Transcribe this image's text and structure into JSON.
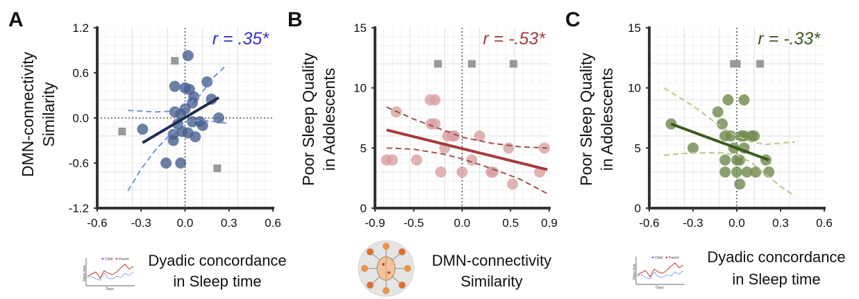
{
  "panels": [
    {
      "id": "A",
      "label": "A",
      "xlabel": [
        "Dyadic concordance",
        "in Sleep time"
      ],
      "ylabel": [
        "DMN-connectivity",
        "Similarity"
      ],
      "r_text": "r = .35*",
      "r_color": "#3333cc",
      "xticks": [
        "-0.6",
        "-0.3",
        "0.0",
        "0.3",
        "0.6"
      ],
      "yticks": [
        "1.2",
        "0.6",
        "0.0",
        "-0.6",
        "-1.2"
      ],
      "inset": "sleep-time-line-icon",
      "inset_legend": [
        "Child",
        "Parent"
      ],
      "inset_xlabel": "Days",
      "inset_ylabel": "Sleep time"
    },
    {
      "id": "B",
      "label": "B",
      "xlabel": [
        "DMN-connectivity",
        "Similarity"
      ],
      "ylabel": [
        "Poor Sleep Quality",
        "in Adolescents"
      ],
      "r_text": "r = -.53*",
      "r_color": "#a04040",
      "xticks": [
        "-0.9",
        "-0.5",
        "0.0",
        "0.5",
        "0.9"
      ],
      "yticks": [
        "15",
        "10",
        "5",
        "0"
      ],
      "inset": "brain-network-icon"
    },
    {
      "id": "C",
      "label": "C",
      "xlabel": [
        "Dyadic concordance",
        "in Sleep time"
      ],
      "ylabel": [
        "Poor Sleep Quality",
        "in Adolescents"
      ],
      "r_text": "r = -.33*",
      "r_color": "#3d5a1e",
      "xticks": [
        "-0.6",
        "-0.3",
        "0.0",
        "0.3",
        "0.6"
      ],
      "yticks": [
        "15",
        "10",
        "5",
        "0"
      ],
      "inset": "sleep-time-line-icon",
      "inset_legend": [
        "Child",
        "Parent"
      ],
      "inset_xlabel": "Days",
      "inset_ylabel": "Sleep time"
    }
  ],
  "colors": {
    "A_points": "#4a5f8e",
    "A_fit": "#1f2d55",
    "A_ci": "#6f95d6",
    "B_points": "#d9a0a0",
    "B_fit": "#a53b3b",
    "B_ci": "#a05050",
    "C_points": "#6f8a4e",
    "C_fit": "#3d5a1e",
    "C_ci": "#b9c98a",
    "outlier": "#999999"
  },
  "chart_data": [
    {
      "type": "scatter",
      "title": "",
      "xlabel": "Dyadic concordance in Sleep time",
      "ylabel": "DMN-connectivity Similarity",
      "xlim": [
        -0.6,
        0.6
      ],
      "ylim": [
        -1.2,
        1.2
      ],
      "grid": true,
      "annotation": "r = .35*",
      "points": [
        {
          "x": -0.29,
          "y": -0.15
        },
        {
          "x": -0.08,
          "y": -0.3
        },
        {
          "x": -0.08,
          "y": -0.22
        },
        {
          "x": -0.13,
          "y": -0.6
        },
        {
          "x": -0.03,
          "y": -0.6
        },
        {
          "x": -0.07,
          "y": 0.08
        },
        {
          "x": -0.07,
          "y": 0.42
        },
        {
          "x": -0.03,
          "y": 0.05
        },
        {
          "x": -0.02,
          "y": -0.18
        },
        {
          "x": 0.0,
          "y": 0.12
        },
        {
          "x": 0.0,
          "y": 0.4
        },
        {
          "x": 0.02,
          "y": 0.83
        },
        {
          "x": 0.02,
          "y": -0.2
        },
        {
          "x": 0.03,
          "y": 0.38
        },
        {
          "x": 0.05,
          "y": 0.2
        },
        {
          "x": 0.05,
          "y": -0.05
        },
        {
          "x": 0.07,
          "y": -0.25
        },
        {
          "x": 0.1,
          "y": -0.05
        },
        {
          "x": 0.12,
          "y": -0.1
        },
        {
          "x": 0.15,
          "y": 0.48
        },
        {
          "x": 0.18,
          "y": 0.25
        },
        {
          "x": 0.23,
          "y": 0.0
        },
        {
          "x": 0.06,
          "y": 0.28
        },
        {
          "x": -0.05,
          "y": -0.08
        }
      ],
      "outliers": [
        {
          "x": -0.43,
          "y": -0.18
        },
        {
          "x": -0.07,
          "y": 0.76
        },
        {
          "x": 0.22,
          "y": -0.67
        }
      ],
      "fit": {
        "x": [
          -0.29,
          0.23
        ],
        "y": [
          -0.33,
          0.27
        ]
      },
      "ci_upper": {
        "x": [
          -0.39,
          -0.2,
          -0.1,
          0.0,
          0.1,
          0.2,
          0.27
        ],
        "y": [
          0.1,
          0.08,
          0.09,
          0.15,
          0.3,
          0.55,
          0.68
        ]
      },
      "ci_lower": {
        "x": [
          -0.39,
          -0.3,
          -0.2,
          -0.1,
          0.0,
          0.1,
          0.2,
          0.29
        ],
        "y": [
          -0.97,
          -0.68,
          -0.42,
          -0.22,
          -0.05,
          -0.03,
          -0.05,
          -0.07
        ]
      }
    },
    {
      "type": "scatter",
      "title": "",
      "xlabel": "DMN-connectivity Similarity",
      "ylabel": "Poor Sleep Quality in Adolescents",
      "xlim": [
        -0.9,
        0.9
      ],
      "ylim": [
        0,
        15
      ],
      "grid": true,
      "annotation": "r = -.53*",
      "points": [
        {
          "x": -0.78,
          "y": 4
        },
        {
          "x": -0.72,
          "y": 4
        },
        {
          "x": -0.68,
          "y": 8
        },
        {
          "x": -0.47,
          "y": 4
        },
        {
          "x": -0.33,
          "y": 9
        },
        {
          "x": -0.28,
          "y": 9
        },
        {
          "x": -0.32,
          "y": 7
        },
        {
          "x": -0.28,
          "y": 7
        },
        {
          "x": -0.22,
          "y": 3
        },
        {
          "x": -0.18,
          "y": 5
        },
        {
          "x": -0.15,
          "y": 6
        },
        {
          "x": -0.1,
          "y": 6
        },
        {
          "x": -0.08,
          "y": 6
        },
        {
          "x": 0.0,
          "y": 3
        },
        {
          "x": 0.1,
          "y": 4
        },
        {
          "x": 0.18,
          "y": 6
        },
        {
          "x": 0.3,
          "y": 3
        },
        {
          "x": 0.32,
          "y": 3
        },
        {
          "x": 0.48,
          "y": 5
        },
        {
          "x": 0.52,
          "y": 2
        },
        {
          "x": 0.8,
          "y": 3
        },
        {
          "x": 0.85,
          "y": 5
        }
      ],
      "outliers": [
        {
          "x": -0.25,
          "y": 12
        },
        {
          "x": 0.1,
          "y": 12
        },
        {
          "x": 0.53,
          "y": 12
        }
      ],
      "fit": {
        "x": [
          -0.78,
          0.88
        ],
        "y": [
          6.5,
          3.2
        ]
      },
      "ci_upper": {
        "x": [
          -0.78,
          -0.5,
          -0.2,
          0.0,
          0.3,
          0.6,
          0.88
        ],
        "y": [
          8.4,
          7.4,
          6.5,
          5.9,
          5.4,
          5.1,
          5.0
        ]
      },
      "ci_lower": {
        "x": [
          -0.78,
          -0.5,
          -0.2,
          0.0,
          0.3,
          0.6,
          0.88
        ],
        "y": [
          5.0,
          4.9,
          4.5,
          4.1,
          3.3,
          2.4,
          1.2
        ]
      }
    },
    {
      "type": "scatter",
      "title": "",
      "xlabel": "Dyadic concordance in Sleep time",
      "ylabel": "Poor Sleep Quality in Adolescents",
      "xlim": [
        -0.6,
        0.6
      ],
      "ylim": [
        0,
        15
      ],
      "grid": true,
      "annotation": "r = -.33*",
      "points": [
        {
          "x": -0.45,
          "y": 7
        },
        {
          "x": -0.3,
          "y": 5
        },
        {
          "x": -0.13,
          "y": 8
        },
        {
          "x": -0.1,
          "y": 7
        },
        {
          "x": -0.08,
          "y": 6
        },
        {
          "x": -0.08,
          "y": 4
        },
        {
          "x": -0.08,
          "y": 3
        },
        {
          "x": -0.06,
          "y": 9
        },
        {
          "x": -0.04,
          "y": 6
        },
        {
          "x": -0.02,
          "y": 5
        },
        {
          "x": 0.0,
          "y": 4
        },
        {
          "x": 0.0,
          "y": 3
        },
        {
          "x": 0.02,
          "y": 4
        },
        {
          "x": 0.02,
          "y": 2
        },
        {
          "x": 0.03,
          "y": 6
        },
        {
          "x": 0.05,
          "y": 9
        },
        {
          "x": 0.05,
          "y": 5
        },
        {
          "x": 0.07,
          "y": 3
        },
        {
          "x": 0.1,
          "y": 6
        },
        {
          "x": 0.12,
          "y": 6
        },
        {
          "x": 0.13,
          "y": 3
        },
        {
          "x": 0.2,
          "y": 4
        },
        {
          "x": 0.22,
          "y": 3
        },
        {
          "x": 0.05,
          "y": 6
        }
      ],
      "outliers": [
        {
          "x": -0.02,
          "y": 12
        },
        {
          "x": 0.0,
          "y": 12
        },
        {
          "x": 0.16,
          "y": 12
        }
      ],
      "fit": {
        "x": [
          -0.45,
          0.22
        ],
        "y": [
          7.0,
          4.0
        ]
      },
      "ci_upper": {
        "x": [
          -0.5,
          -0.3,
          -0.1,
          0.0,
          0.1,
          0.2,
          0.3,
          0.4
        ],
        "y": [
          10.0,
          8.5,
          6.7,
          6.0,
          5.5,
          5.3,
          5.4,
          5.5
        ]
      },
      "ci_lower": {
        "x": [
          -0.5,
          -0.3,
          -0.1,
          0.0,
          0.1,
          0.2,
          0.3,
          0.4
        ],
        "y": [
          4.4,
          4.6,
          4.6,
          4.4,
          3.8,
          2.8,
          1.8,
          1.0
        ]
      }
    }
  ]
}
